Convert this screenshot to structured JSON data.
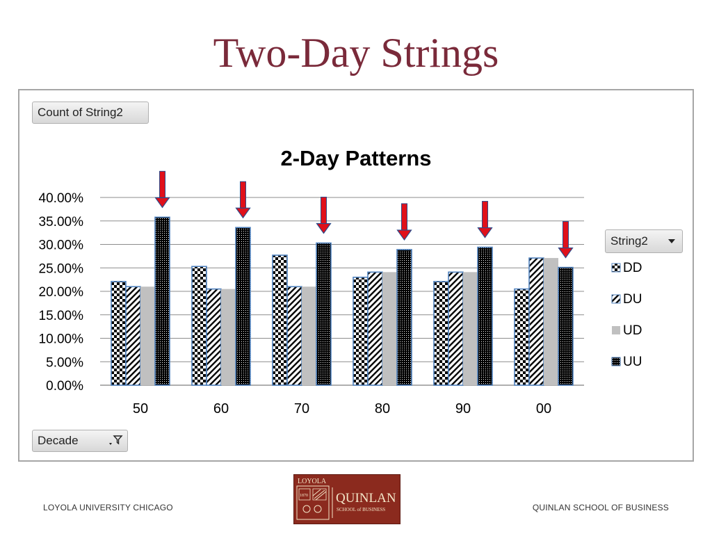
{
  "slide": {
    "title": "Two-Day Strings"
  },
  "pivot": {
    "value_field": "Count of String2",
    "legend_field": "String2",
    "axis_field": "Decade",
    "dropdown_icon": "chevron-down-icon",
    "filter_icon": "filter-icon"
  },
  "chart_data": {
    "type": "bar",
    "title": "2-Day Patterns",
    "xlabel": "",
    "ylabel": "",
    "categories": [
      "50",
      "60",
      "70",
      "80",
      "90",
      "00"
    ],
    "series": [
      {
        "name": "DD",
        "values": [
          0.221,
          0.253,
          0.277,
          0.23,
          0.221,
          0.205
        ]
      },
      {
        "name": "DU",
        "values": [
          0.21,
          0.205,
          0.21,
          0.241,
          0.241,
          0.271
        ]
      },
      {
        "name": "UD",
        "values": [
          0.21,
          0.205,
          0.21,
          0.241,
          0.241,
          0.271
        ]
      },
      {
        "name": "UU",
        "values": [
          0.358,
          0.336,
          0.303,
          0.289,
          0.294,
          0.251
        ]
      }
    ],
    "ylim": [
      0,
      0.4
    ],
    "yticks": [
      "0.00%",
      "5.00%",
      "10.00%",
      "15.00%",
      "20.00%",
      "25.00%",
      "30.00%",
      "35.00%",
      "40.00%"
    ],
    "grid": true,
    "legend_position": "right",
    "annotations": "red down-arrow above the UU bar of every decade",
    "colors": {
      "arrow": "#e0101a",
      "arrow_outline": "#2b4a8a",
      "bar_outline": "#4f81bd",
      "UD_fill": "#c0c0c0"
    }
  },
  "footer": {
    "left": "LOYOLA UNIVERSITY CHICAGO",
    "right": "QUINLAN SCHOOL OF BUSINESS"
  },
  "logo": {
    "top": "LOYOLA",
    "year": "1870",
    "name": "QUINLAN",
    "sub": "SCHOOL of BUSINESS"
  }
}
